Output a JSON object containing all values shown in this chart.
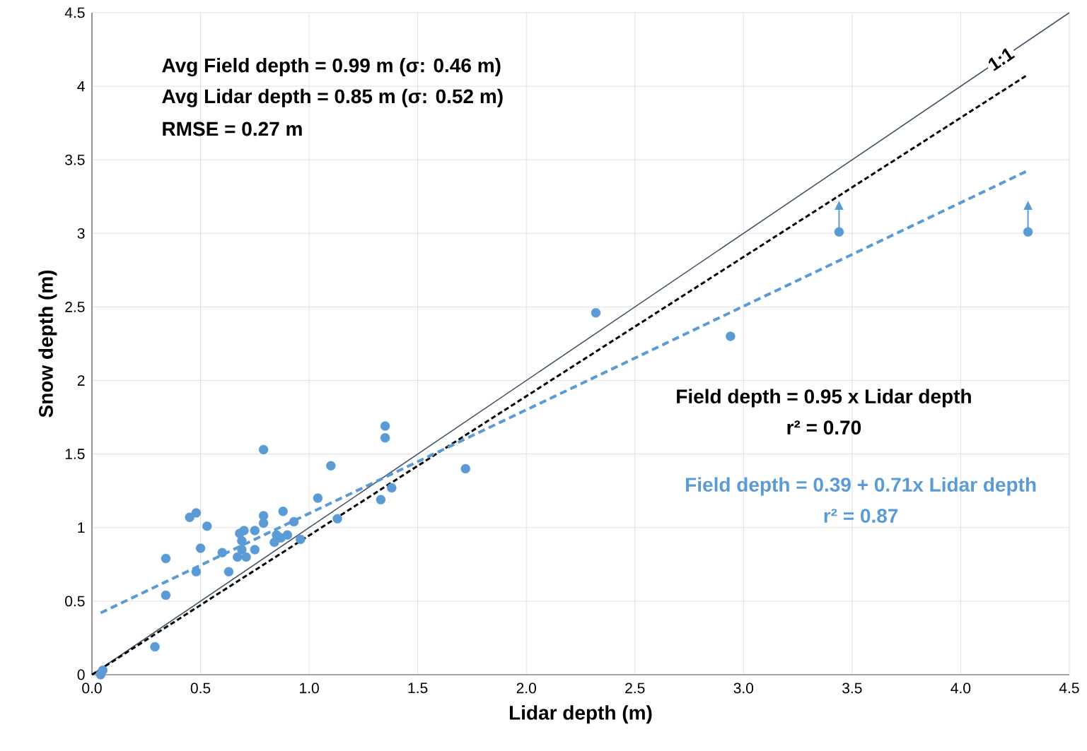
{
  "chart_data": {
    "type": "scatter",
    "xlabel": "Lidar depth (m)",
    "ylabel": "Snow depth (m)",
    "xlim": [
      0,
      4.5
    ],
    "ylim": [
      0,
      4.5
    ],
    "xticks": [
      {
        "value": 0,
        "label": "0.0"
      },
      0.5,
      {
        "value": 1,
        "label": "1.0"
      },
      1.5,
      {
        "value": 2,
        "label": "2.0"
      },
      2.5,
      {
        "value": 3,
        "label": "3.0"
      },
      3.5,
      {
        "value": 4,
        "label": "4.0"
      },
      4.5
    ],
    "yticks": [
      0,
      0.5,
      1,
      1.5,
      2,
      2.5,
      3,
      3.5,
      4,
      4.5
    ],
    "grid": true,
    "series": [
      {
        "color": "#5b9bd5",
        "marker": "circle",
        "x": [
          0.04,
          0.05,
          0.29,
          0.34,
          0.34,
          0.45,
          0.48,
          0.48,
          0.5,
          0.53,
          0.6,
          0.63,
          0.67,
          0.68,
          0.69,
          0.69,
          0.71,
          0.7,
          0.75,
          0.75,
          0.79,
          0.79,
          0.79,
          0.84,
          0.85,
          0.87,
          0.88,
          0.9,
          0.93,
          0.96,
          1.04,
          1.1,
          1.13,
          1.33,
          1.35,
          1.35,
          1.38,
          1.72,
          2.32,
          2.94,
          3.44,
          4.31
        ],
        "values": [
          0.0,
          0.03,
          0.19,
          0.54,
          0.79,
          1.07,
          1.1,
          0.7,
          0.86,
          1.01,
          0.83,
          0.7,
          0.8,
          0.96,
          0.91,
          0.85,
          0.8,
          0.98,
          0.98,
          0.85,
          1.03,
          1.08,
          1.53,
          0.9,
          0.95,
          0.93,
          1.11,
          0.95,
          1.04,
          0.92,
          1.2,
          1.42,
          1.06,
          1.19,
          1.61,
          1.69,
          1.27,
          1.4,
          2.46,
          2.3,
          3.01,
          3.01
        ],
        "errors": [
          null,
          null,
          null,
          null,
          null,
          null,
          null,
          null,
          null,
          null,
          null,
          null,
          null,
          null,
          null,
          null,
          null,
          null,
          null,
          null,
          null,
          null,
          null,
          null,
          null,
          null,
          null,
          null,
          null,
          null,
          null,
          null,
          null,
          null,
          null,
          null,
          null,
          null,
          null,
          null,
          [
            3.01,
            3.16
          ],
          [
            3.01,
            3.16
          ]
        ]
      },
      {
        "type": "line",
        "name": "1:1",
        "color": "#44546a",
        "line_style": "solid",
        "marker": "none",
        "x": [
          0,
          4.5
        ],
        "values": [
          0,
          4.5
        ]
      },
      {
        "type": "line",
        "color": "#000000",
        "line_style": "dashed",
        "marker": "none",
        "x": [
          0,
          4.3
        ],
        "values": [
          0,
          4.07
        ]
      },
      {
        "type": "line",
        "color": "#5b9bd5",
        "line_style": "dashed",
        "marker": "none",
        "x": [
          0.04,
          4.3
        ],
        "values": [
          0.42,
          3.42
        ]
      }
    ],
    "annotations": [
      "Avg Field depth = 0.99 m (σ: 0.46 m)",
      "Avg Lidar depth = 0.85 m (σ: 0.52 m)",
      "RMSE = 0.27 m",
      "Field depth  = 0.95 x  Lidar depth",
      "r² = 0.70",
      "Field depth = 0.39 + 0.71x  Lidar depth",
      "r² = 0.87"
    ]
  }
}
